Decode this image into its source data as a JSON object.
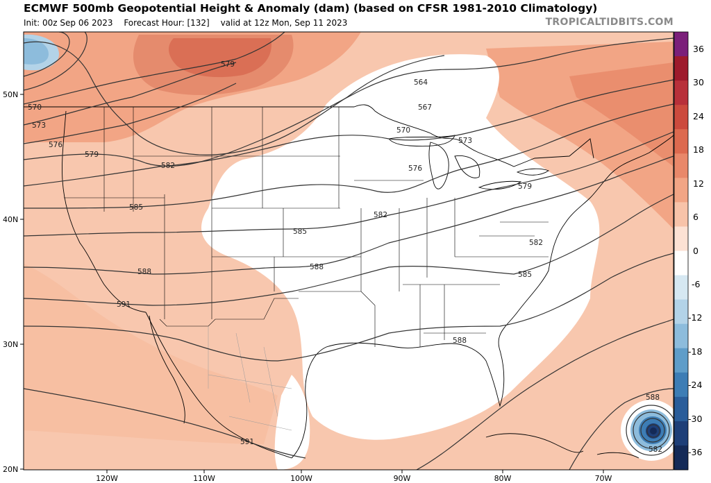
{
  "header": {
    "title": "ECMWF 500mb Geopotential Height & Anomaly (dam) (based on CFSR 1981-2010 Climatology)",
    "init": "Init: 00z Sep 06 2023",
    "forecast_hour": "Forecast Hour: [132]",
    "valid": "valid at 12z Mon, Sep 11 2023",
    "credit": "TROPICALTIDBITS.COM"
  },
  "axes": {
    "lat_labels": [
      "50N",
      "40N",
      "30N",
      "20N"
    ],
    "lon_labels": [
      "120W",
      "110W",
      "100W",
      "90W",
      "80W",
      "70W"
    ]
  },
  "colorbar": {
    "ticks": [
      "36",
      "30",
      "24",
      "18",
      "12",
      "6",
      "0",
      "-6",
      "-12",
      "-18",
      "-24",
      "-30",
      "-36"
    ],
    "colors": [
      "#7b1f7a",
      "#9e1a2c",
      "#b8303a",
      "#cc4a3d",
      "#dd6a4f",
      "#e9886a",
      "#f2a585",
      "#f8c3a9",
      "#fde2d4",
      "#ffffff",
      "#d6e8f2",
      "#b3d3e8",
      "#8dbcdc",
      "#5f9dc9",
      "#3d7db5",
      "#2a5d9a",
      "#1e3f78",
      "#142a57"
    ]
  },
  "contour_labels": [
    "570",
    "573",
    "576",
    "579",
    "582",
    "585",
    "588",
    "591",
    "579",
    "564",
    "567",
    "570",
    "573",
    "576",
    "579",
    "582",
    "585",
    "585",
    "582",
    "588",
    "588",
    "591",
    "588",
    "582"
  ]
}
